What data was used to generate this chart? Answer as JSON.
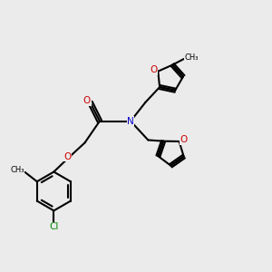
{
  "bg": "#ebebeb",
  "bond_color": "#000000",
  "N_color": "#0000cc",
  "O_color": "#cc0000",
  "Cl_color": "#008800",
  "lw": 1.5,
  "fs": 7.5,
  "figsize": [
    3.0,
    3.0
  ],
  "dpi": 100,
  "xlim": [
    0,
    10
  ],
  "ylim": [
    0,
    10
  ]
}
